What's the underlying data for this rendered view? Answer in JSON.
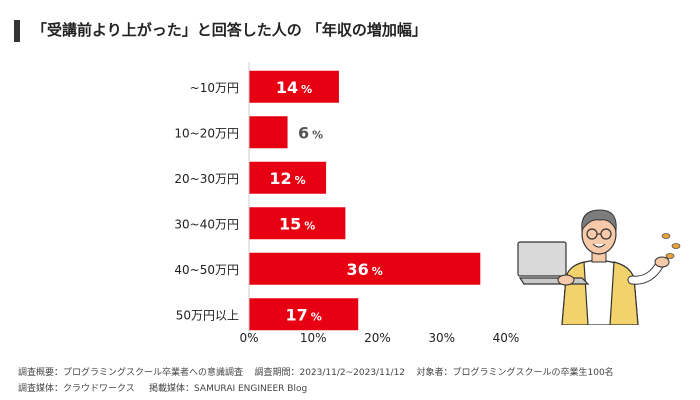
{
  "header": {
    "title": "「受講前より上がった」と回答した人の 「年収の増加幅」"
  },
  "chart_data": {
    "type": "bar",
    "orientation": "horizontal",
    "title": "「受講前より上がった」と回答した人の 「年収の増加幅」",
    "categories": [
      "~10万円",
      "10~20万円",
      "20~30万円",
      "30~40万円",
      "40~50万円",
      "50万円以上"
    ],
    "values": [
      14,
      6,
      12,
      15,
      36,
      17
    ],
    "value_suffix": "%",
    "xlim": [
      0,
      40
    ],
    "xticks": [
      0,
      10,
      20,
      30,
      40
    ],
    "xtick_labels": [
      "0%",
      "10%",
      "20%",
      "30%",
      "40%"
    ],
    "xlabel": "",
    "ylabel": "",
    "grid": false,
    "bar_color": "#e60012",
    "label_inside_color": "#ffffff",
    "label_outside_color": "#555555"
  },
  "footer": {
    "survey_overview": "調査概要：プログラミングスクール卒業者への意識調査",
    "survey_period": "調査期間：2023/11/2~2023/11/12",
    "target": "対象者：プログラミングスクールの卒業生100名",
    "medium": "調査媒体：クラウドワークス",
    "publication": "掲載媒体：SAMURAI ENGINEER Blog"
  }
}
